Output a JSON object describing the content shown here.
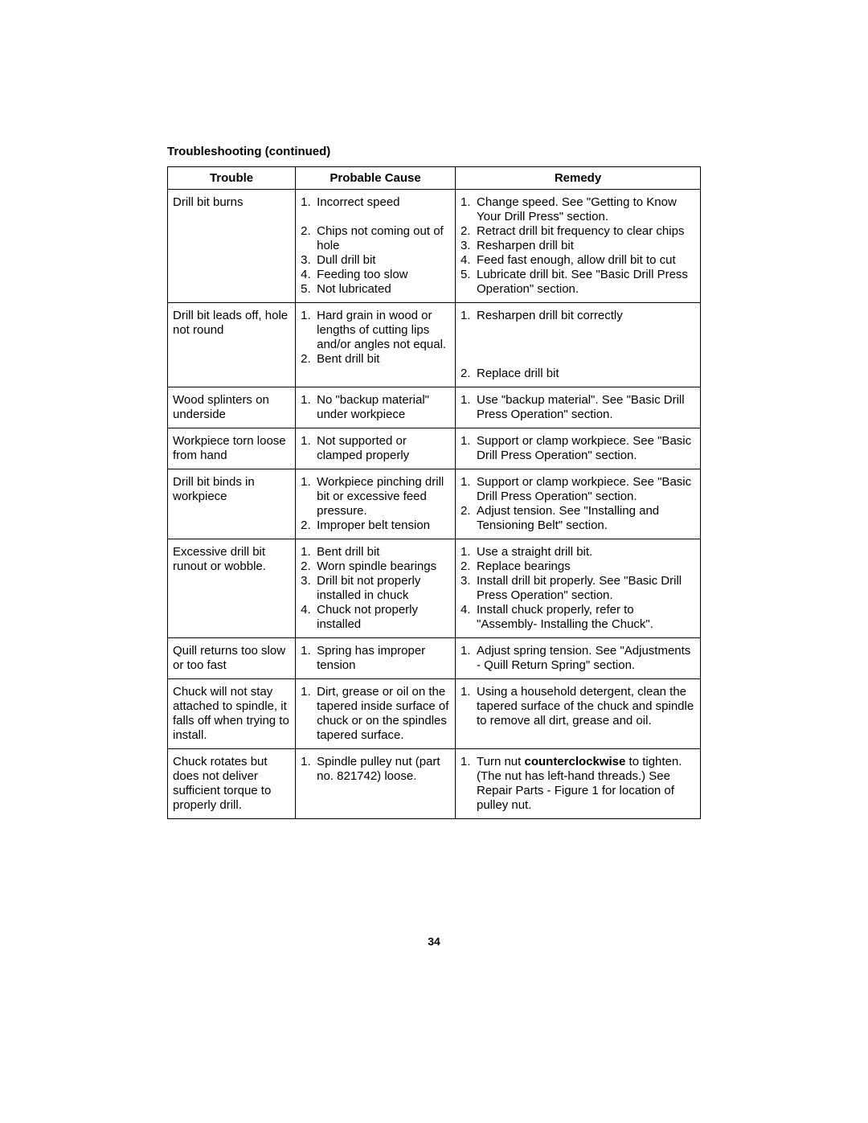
{
  "section_title": "Troubleshooting (continued)",
  "page_number": "34",
  "headers": {
    "trouble": "Trouble",
    "cause": "Probable Cause",
    "remedy": "Remedy"
  },
  "rows": [
    {
      "trouble": "Drill bit burns",
      "causes": [
        "Incorrect speed",
        "Chips not coming out of hole",
        "Dull drill bit",
        "Feeding too slow",
        "Not lubricated"
      ],
      "remedies": [
        "Change speed. See \"Getting to Know Your Drill Press\" section.",
        "Retract drill bit frequency to clear chips",
        "Resharpen drill bit",
        "Feed fast enough, allow drill bit to cut",
        "Lubricate drill bit. See \"Basic Drill Press Operation\" section."
      ]
    },
    {
      "trouble": "Drill bit leads off, hole not round",
      "causes": [
        "Hard grain in wood or lengths of cutting lips and/or angles not equal.",
        "Bent drill bit"
      ],
      "remedies": [
        "Resharpen drill bit correctly",
        "Replace drill bit"
      ],
      "remedy_gap": true
    },
    {
      "trouble": "Wood splinters on underside",
      "causes": [
        "No \"backup material\" under workpiece"
      ],
      "remedies": [
        "Use \"backup material\". See \"Basic Drill Press Operation\" section."
      ]
    },
    {
      "trouble": "Workpiece torn loose from hand",
      "causes": [
        "Not supported or clamped properly"
      ],
      "remedies": [
        "Support or clamp workpiece. See \"Basic Drill Press Operation\" section."
      ]
    },
    {
      "trouble": "Drill bit binds in workpiece",
      "causes": [
        "Workpiece pinching drill bit or excessive feed pressure.",
        "Improper belt tension"
      ],
      "remedies": [
        "Support or clamp workpiece. See \"Basic Drill Press Operation\" section.",
        "Adjust tension. See \"Installing and Tensioning Belt\" section."
      ]
    },
    {
      "trouble": "Excessive drill bit runout or wobble.",
      "causes": [
        "Bent drill bit",
        "Worn spindle bearings",
        "Drill bit not properly installed in chuck",
        "Chuck not properly installed"
      ],
      "remedies": [
        "Use a straight drill bit.",
        "Replace bearings",
        "Install drill bit properly. See \"Basic Drill Press Operation\" section.",
        "Install chuck properly, refer to \"Assembly- Installing the Chuck\"."
      ]
    },
    {
      "trouble": "Quill returns too slow or too fast",
      "causes": [
        "Spring has improper tension"
      ],
      "remedies": [
        "Adjust spring tension. See \"Adjustments - Quill Return Spring\" section."
      ]
    },
    {
      "trouble": "Chuck will not stay attached to spindle, it falls off when trying to install.",
      "causes": [
        "Dirt, grease or oil on the tapered inside surface of chuck or on the spindles tapered surface."
      ],
      "remedies": [
        "Using a household detergent, clean the tapered surface of the chuck and spindle to remove all dirt, grease and oil."
      ]
    },
    {
      "trouble": "Chuck rotates but does not deliver sufficient torque to properly drill.",
      "causes": [
        "Spindle pulley nut (part no. 821742) loose."
      ],
      "remedies_html": [
        "Turn nut <span class=\"bold\">counterclockwise</span> to tighten. (The nut has left-hand threads.) See Repair Parts - Figure 1 for location of pulley nut."
      ]
    }
  ]
}
